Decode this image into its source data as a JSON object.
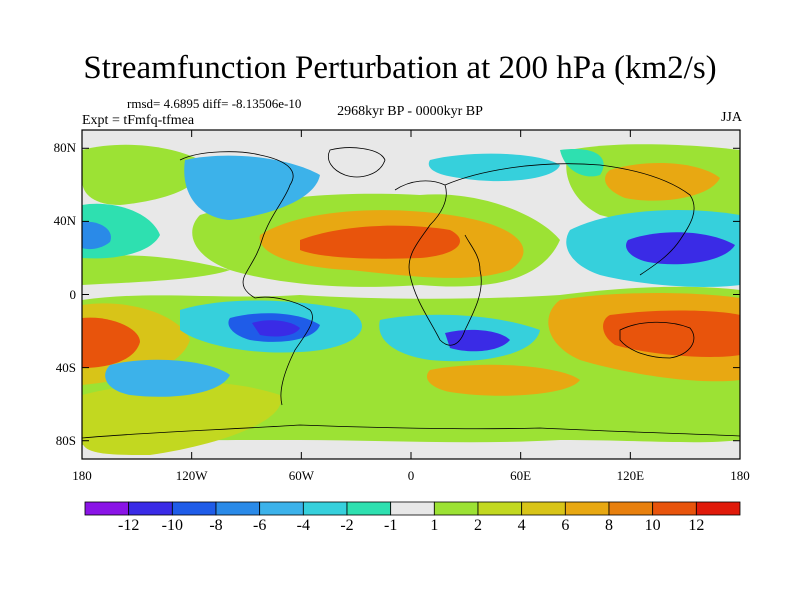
{
  "title": "Streamfunction Perturbation at 200 hPa (km2/s)",
  "stats_text": "rmsd= 4.6895 diff= -8.13506e-10",
  "experiment": "Expt = tFmfq-tfmea",
  "period": "2968kyr BP - 0000kyr BP",
  "season": "JJA",
  "map": {
    "projection": "cylindrical-equidistant",
    "lon_range": [
      -180,
      180
    ],
    "lat_range": [
      -90,
      90
    ],
    "lat_ticks": [
      {
        "value": 80,
        "label": "80N"
      },
      {
        "value": 40,
        "label": "40N"
      },
      {
        "value": 0,
        "label": "0"
      },
      {
        "value": -40,
        "label": "40S"
      },
      {
        "value": -80,
        "label": "80S"
      }
    ],
    "lon_ticks": [
      {
        "value": -180,
        "label": "180"
      },
      {
        "value": -120,
        "label": "120W"
      },
      {
        "value": -60,
        "label": "60W"
      },
      {
        "value": 0,
        "label": "0"
      },
      {
        "value": 60,
        "label": "60E"
      },
      {
        "value": 120,
        "label": "120E"
      },
      {
        "value": 180,
        "label": "180"
      }
    ]
  },
  "colorbar": {
    "colors": [
      "#8a14e6",
      "#3a2be6",
      "#1f5ce8",
      "#2a8ae8",
      "#3cb2ea",
      "#36d0dc",
      "#2ee0b0",
      "#e8e8e8",
      "#9ce234",
      "#c2d820",
      "#d8c418",
      "#e8a812",
      "#e8800e",
      "#e8540c",
      "#e01a0a"
    ],
    "labels": [
      "-12",
      "-10",
      "-8",
      "-6",
      "-4",
      "-2",
      "-1",
      "1",
      "2",
      "4",
      "6",
      "8",
      "10",
      "12"
    ]
  }
}
